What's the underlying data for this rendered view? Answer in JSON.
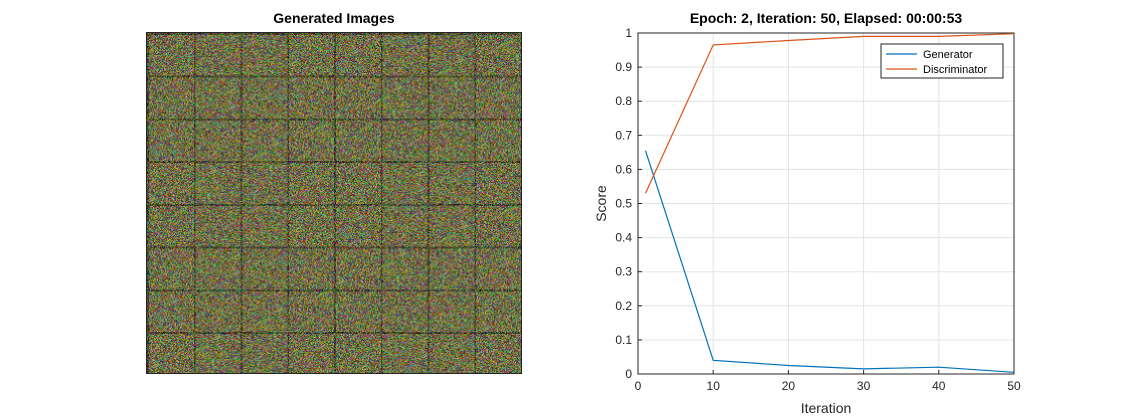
{
  "left_panel": {
    "title": "Generated Images",
    "palette": [
      "#6b6330",
      "#4d6b55",
      "#8a5a4a",
      "#5a5f7a",
      "#7a7a3a",
      "#3f5a4a",
      "#8c6d3d",
      "#566a7a"
    ]
  },
  "chart_data": {
    "type": "line",
    "title": "Epoch: 2, Iteration: 50, Elapsed: 00:00:53",
    "xlabel": "Iteration",
    "ylabel": "Score",
    "xlim": [
      0,
      50
    ],
    "ylim": [
      0,
      1
    ],
    "xticks": [
      "0",
      "10",
      "20",
      "30",
      "40",
      "50"
    ],
    "yticks": [
      "0",
      "0.1",
      "0.2",
      "0.3",
      "0.4",
      "0.5",
      "0.6",
      "0.7",
      "0.8",
      "0.9",
      "1"
    ],
    "grid": true,
    "legend_position": "top-right",
    "series": [
      {
        "name": "Generator",
        "color": "#0072BD",
        "x": [
          1,
          10,
          20,
          30,
          40,
          50
        ],
        "y": [
          0.655,
          0.04,
          0.025,
          0.015,
          0.02,
          0.005
        ]
      },
      {
        "name": "Discriminator",
        "color": "#D95319",
        "x": [
          1,
          10,
          20,
          30,
          40,
          50
        ],
        "y": [
          0.53,
          0.965,
          0.978,
          0.99,
          0.99,
          0.998
        ]
      }
    ]
  }
}
